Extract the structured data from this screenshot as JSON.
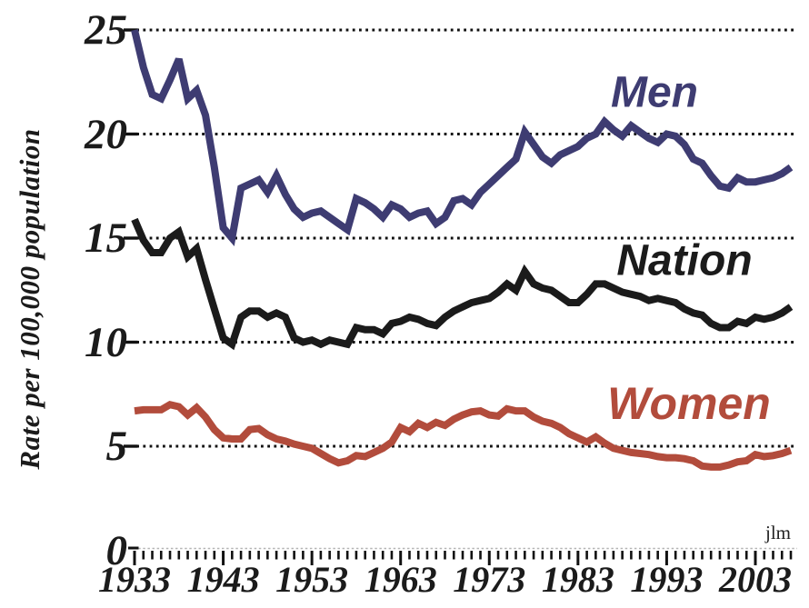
{
  "y_axis": {
    "title": "Rate per 100,000 population",
    "tick_labels": [
      "25",
      "20",
      "15",
      "10",
      "5",
      "0"
    ],
    "tick_values": [
      25,
      20,
      15,
      10,
      5,
      0
    ]
  },
  "x_axis": {
    "tick_labels": [
      "1933",
      "1943",
      "1953",
      "1963",
      "1973",
      "1983",
      "1993",
      "2003"
    ],
    "tick_values": [
      1933,
      1943,
      1953,
      1963,
      1973,
      1983,
      1993,
      2003
    ],
    "minor_tick_step": 1
  },
  "series_labels": {
    "men": "Men",
    "nation": "Nation",
    "women": "Women"
  },
  "credit": "jlm",
  "colors": {
    "men": "#3e3c72",
    "nation": "#1b1b1b",
    "women": "#b24c3c",
    "grid": "#111111",
    "baseline": "#b5b5b5"
  },
  "chart_data": {
    "type": "line",
    "ylabel": "Rate per 100,000 population",
    "ylim": [
      0,
      25
    ],
    "xlim": [
      1933,
      2007
    ],
    "grid": "horizontal dotted lines at y = 5, 10, 15, 20, 25",
    "legend_position": "inline labels beside each line",
    "years": [
      1933,
      1934,
      1935,
      1936,
      1937,
      1938,
      1939,
      1940,
      1941,
      1942,
      1943,
      1944,
      1945,
      1946,
      1947,
      1948,
      1949,
      1950,
      1951,
      1952,
      1953,
      1954,
      1955,
      1956,
      1957,
      1958,
      1959,
      1960,
      1961,
      1962,
      1963,
      1964,
      1965,
      1966,
      1967,
      1968,
      1969,
      1970,
      1971,
      1972,
      1973,
      1974,
      1975,
      1976,
      1977,
      1978,
      1979,
      1980,
      1981,
      1982,
      1983,
      1984,
      1985,
      1986,
      1987,
      1988,
      1989,
      1990,
      1991,
      1992,
      1993,
      1994,
      1995,
      1996,
      1997,
      1998,
      1999,
      2000,
      2001,
      2002,
      2003,
      2004,
      2005,
      2006,
      2007
    ],
    "series": [
      {
        "name": "Men",
        "color": "#3e3c72",
        "values": [
          25.0,
          23.2,
          21.9,
          21.7,
          22.6,
          23.6,
          21.7,
          22.1,
          20.9,
          18.4,
          15.5,
          15.0,
          17.4,
          17.6,
          17.8,
          17.2,
          18.0,
          17.1,
          16.4,
          16.0,
          16.2,
          16.3,
          16.0,
          15.7,
          15.4,
          16.9,
          16.7,
          16.4,
          16.0,
          16.6,
          16.4,
          16.0,
          16.2,
          16.3,
          15.7,
          16.0,
          16.8,
          16.9,
          16.6,
          17.2,
          17.6,
          18.0,
          18.4,
          18.8,
          20.1,
          19.5,
          18.9,
          18.6,
          19.0,
          19.2,
          19.4,
          19.8,
          20.0,
          20.6,
          20.2,
          19.9,
          20.4,
          20.1,
          19.8,
          19.6,
          20.0,
          19.9,
          19.5,
          18.8,
          18.6,
          18.0,
          17.5,
          17.4,
          17.9,
          17.7,
          17.7,
          17.8,
          17.9,
          18.1,
          18.4
        ]
      },
      {
        "name": "Nation",
        "color": "#1b1b1b",
        "values": [
          15.9,
          14.9,
          14.3,
          14.3,
          15.0,
          15.3,
          14.1,
          14.5,
          13.0,
          11.6,
          10.2,
          9.9,
          11.2,
          11.5,
          11.5,
          11.2,
          11.4,
          11.2,
          10.2,
          10.0,
          10.1,
          9.9,
          10.1,
          10.0,
          9.9,
          10.7,
          10.6,
          10.6,
          10.4,
          10.9,
          11.0,
          11.2,
          11.1,
          10.9,
          10.8,
          11.2,
          11.5,
          11.7,
          11.9,
          12.0,
          12.1,
          12.4,
          12.8,
          12.5,
          13.4,
          12.8,
          12.6,
          12.5,
          12.2,
          11.9,
          11.9,
          12.3,
          12.8,
          12.8,
          12.6,
          12.4,
          12.3,
          12.2,
          12.0,
          12.1,
          12.0,
          11.9,
          11.6,
          11.4,
          11.3,
          10.9,
          10.7,
          10.7,
          11.0,
          10.9,
          11.2,
          11.1,
          11.2,
          11.4,
          11.7
        ]
      },
      {
        "name": "Women",
        "color": "#b24c3c",
        "values": [
          6.7,
          6.75,
          6.75,
          6.75,
          7.0,
          6.9,
          6.5,
          6.85,
          6.4,
          5.8,
          5.4,
          5.35,
          5.35,
          5.8,
          5.85,
          5.55,
          5.35,
          5.25,
          5.1,
          5.0,
          4.9,
          4.65,
          4.4,
          4.2,
          4.3,
          4.55,
          4.5,
          4.7,
          4.9,
          5.2,
          5.9,
          5.7,
          6.1,
          5.9,
          6.15,
          6.0,
          6.3,
          6.5,
          6.65,
          6.7,
          6.5,
          6.45,
          6.8,
          6.7,
          6.7,
          6.4,
          6.2,
          6.1,
          5.9,
          5.6,
          5.4,
          5.2,
          5.45,
          5.15,
          4.9,
          4.8,
          4.7,
          4.65,
          4.6,
          4.5,
          4.45,
          4.45,
          4.4,
          4.3,
          4.05,
          4.0,
          4.0,
          4.1,
          4.25,
          4.3,
          4.6,
          4.5,
          4.55,
          4.65,
          4.8
        ]
      }
    ]
  }
}
